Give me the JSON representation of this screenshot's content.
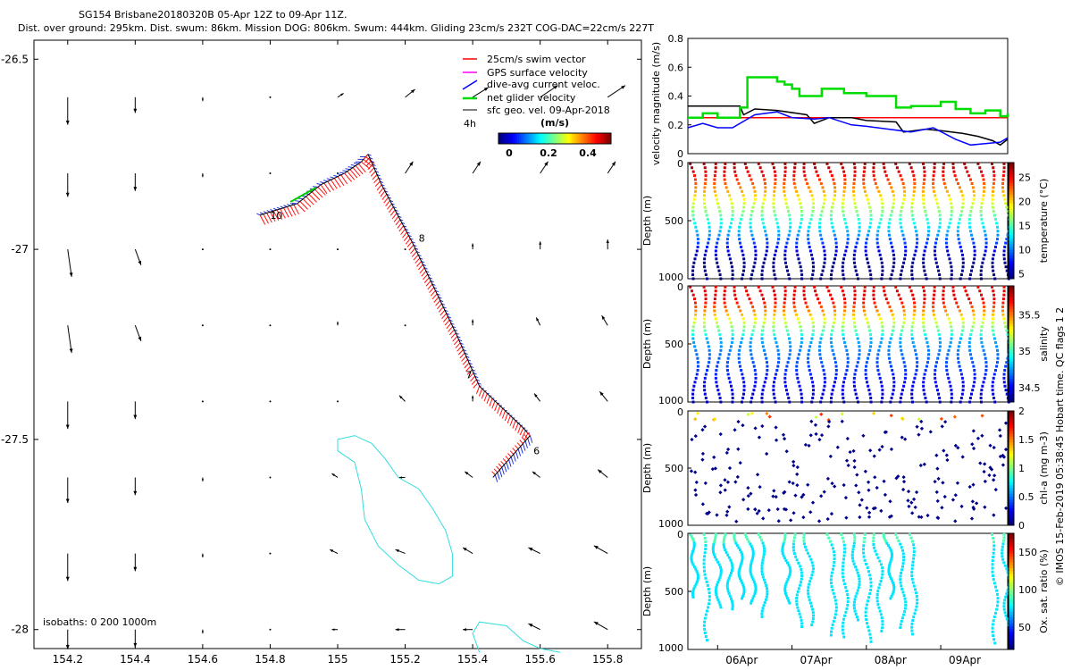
{
  "header": {
    "line1": "SG154 Brisbane20180320B 05-Apr 12Z to 09-Apr 11Z.",
    "line2": "Dist. over ground: 295km. Dist. swum: 86km. Mission DOG: 806km. Swum: 444km. Gliding 23cm/s 232T COG-DAC=22cm/s 227T"
  },
  "chart_data": [
    {
      "type": "scatter",
      "name": "map",
      "title": "glider track map",
      "xlim": [
        154.1,
        155.9
      ],
      "ylim": [
        -28.05,
        -26.45
      ],
      "x_ticks": [
        154.2,
        154.4,
        154.6,
        154.8,
        155,
        155.2,
        155.4,
        155.6,
        155.8
      ],
      "x_tick_labels": [
        "154.2",
        "154.4",
        "154.6",
        "154.8",
        "155",
        "155.2",
        "155.4",
        "155.6",
        "155.8"
      ],
      "y_ticks": [
        -26.5,
        -27,
        -27.5,
        -28
      ],
      "y_tick_labels": [
        "-26.5",
        "-27",
        "-27.5",
        "-28"
      ],
      "legend": {
        "placement": "top-right",
        "entries": [
          {
            "label": "25cm/s swim vector",
            "color": "#ff0000"
          },
          {
            "label": "GPS surface velocity",
            "color": "#ff00ff"
          },
          {
            "label": "dive-avg current veloc.",
            "color": "#0000ff"
          },
          {
            "label": "net glider velocity",
            "color": "#00cc00"
          },
          {
            "label": "sfc geo. vel. 09-Apr-2018",
            "color": "#000000"
          }
        ],
        "note": "4h",
        "colorbar_title": "(m/s)",
        "colorbar_ticks": [
          "0",
          "0.2",
          "0.4"
        ]
      },
      "isobaths_label": "isobaths: 0   200  1000m",
      "track": [
        {
          "lon": 154.77,
          "lat": -26.91
        },
        {
          "lon": 154.88,
          "lat": -26.88
        },
        {
          "lon": 154.95,
          "lat": -26.83
        },
        {
          "lon": 155.02,
          "lat": -26.8
        },
        {
          "lon": 155.07,
          "lat": -26.77
        },
        {
          "lon": 155.09,
          "lat": -26.75
        },
        {
          "lon": 155.13,
          "lat": -26.83
        },
        {
          "lon": 155.22,
          "lat": -26.98
        },
        {
          "lon": 155.35,
          "lat": -27.22
        },
        {
          "lon": 155.42,
          "lat": -27.36
        },
        {
          "lon": 155.55,
          "lat": -27.47
        },
        {
          "lon": 155.57,
          "lat": -27.49
        },
        {
          "lon": 155.5,
          "lat": -27.56
        },
        {
          "lon": 155.46,
          "lat": -27.6
        }
      ],
      "day_labels": [
        {
          "text": "10",
          "lon": 154.8,
          "lat": -26.91
        },
        {
          "text": "8",
          "lon": 155.24,
          "lat": -26.97
        },
        {
          "text": "7",
          "lon": 155.38,
          "lat": -27.33
        },
        {
          "text": "6",
          "lon": 155.58,
          "lat": -27.53
        }
      ],
      "isobath_1000m": [
        {
          "lon": 155.0,
          "lat": -27.5
        },
        {
          "lon": 155.05,
          "lat": -27.49
        },
        {
          "lon": 155.1,
          "lat": -27.51
        },
        {
          "lon": 155.14,
          "lat": -27.55
        },
        {
          "lon": 155.18,
          "lat": -27.6
        },
        {
          "lon": 155.24,
          "lat": -27.63
        },
        {
          "lon": 155.28,
          "lat": -27.68
        },
        {
          "lon": 155.32,
          "lat": -27.74
        },
        {
          "lon": 155.34,
          "lat": -27.8
        },
        {
          "lon": 155.34,
          "lat": -27.86
        },
        {
          "lon": 155.3,
          "lat": -27.88
        },
        {
          "lon": 155.24,
          "lat": -27.87
        },
        {
          "lon": 155.18,
          "lat": -27.83
        },
        {
          "lon": 155.12,
          "lat": -27.78
        },
        {
          "lon": 155.08,
          "lat": -27.71
        },
        {
          "lon": 155.07,
          "lat": -27.63
        },
        {
          "lon": 155.05,
          "lat": -27.56
        },
        {
          "lon": 155.0,
          "lat": -27.53
        },
        {
          "lon": 155.0,
          "lat": -27.5
        }
      ],
      "isobath_1000m_south": [
        {
          "lon": 155.42,
          "lat": -28.06
        },
        {
          "lon": 155.4,
          "lat": -28.01
        },
        {
          "lon": 155.42,
          "lat": -27.98
        },
        {
          "lon": 155.5,
          "lat": -27.99
        },
        {
          "lon": 155.55,
          "lat": -28.03
        },
        {
          "lon": 155.6,
          "lat": -28.05
        },
        {
          "lon": 155.66,
          "lat": -28.06
        }
      ],
      "current_grid": {
        "lons": [
          154.2,
          154.4,
          154.6,
          154.8,
          155.0,
          155.2,
          155.4,
          155.6,
          155.8
        ],
        "lats": [
          -26.6,
          -26.8,
          -27.0,
          -27.2,
          -27.4,
          -27.6,
          -27.8,
          -28.0
        ],
        "u": [
          [
            0.0,
            0.0,
            0.0,
            0.0,
            0.03,
            0.05,
            0.08,
            0.09,
            0.09
          ],
          [
            0.0,
            0.0,
            0.0,
            0.0,
            0.0,
            0.04,
            0.04,
            0.04,
            0.04
          ],
          [
            0.02,
            0.03,
            0.0,
            0.0,
            0.0,
            0.0,
            0.0,
            0.0,
            0.0
          ],
          [
            0.02,
            0.03,
            0.0,
            0.0,
            0.0,
            0.0,
            0.0,
            -0.02,
            -0.03
          ],
          [
            0.0,
            0.0,
            0.0,
            0.0,
            0.0,
            -0.03,
            0.0,
            -0.03,
            -0.04
          ],
          [
            0.0,
            0.0,
            0.0,
            0.0,
            -0.03,
            -0.03,
            -0.04,
            -0.04,
            -0.05
          ],
          [
            0.0,
            0.0,
            0.0,
            0.0,
            -0.04,
            -0.05,
            -0.05,
            -0.06,
            -0.07
          ],
          [
            0.0,
            0.0,
            0.0,
            0.0,
            -0.03,
            -0.05,
            -0.05,
            -0.06,
            -0.07
          ]
        ],
        "v": [
          [
            -0.14,
            -0.08,
            -0.02,
            0.0,
            0.02,
            0.04,
            0.05,
            0.06,
            0.06
          ],
          [
            -0.12,
            -0.09,
            -0.02,
            0.0,
            0.0,
            0.06,
            0.06,
            0.06,
            0.06
          ],
          [
            -0.14,
            -0.08,
            0.0,
            0.0,
            0.0,
            0.0,
            0.03,
            0.04,
            0.05
          ],
          [
            -0.14,
            -0.08,
            0.0,
            0.0,
            0.02,
            0.0,
            0.03,
            0.04,
            0.05
          ],
          [
            -0.14,
            -0.09,
            0.0,
            0.0,
            0.0,
            0.03,
            0.03,
            0.04,
            0.05
          ],
          [
            -0.13,
            -0.09,
            -0.02,
            0.0,
            0.02,
            0.0,
            0.03,
            0.03,
            0.04
          ],
          [
            -0.14,
            -0.09,
            -0.02,
            0.0,
            0.02,
            0.02,
            0.03,
            0.03,
            0.04
          ],
          [
            -0.1,
            -0.09,
            -0.02,
            0.0,
            0.0,
            0.0,
            0.0,
            0.03,
            0.04
          ]
        ]
      }
    },
    {
      "type": "line",
      "name": "velocity",
      "ylabel": "velocity magnitude (m/s)",
      "xlim": [
        5.6,
        9.9
      ],
      "ylim": [
        0,
        0.8
      ],
      "y_ticks": [
        0,
        0.2,
        0.4,
        0.6,
        0.8
      ],
      "y_tick_labels": [
        "0",
        "0.2",
        "0.4",
        "0.6",
        "0.8"
      ],
      "series": [
        {
          "name": "swim speed",
          "color": "#ff0000",
          "x": [
            5.6,
            9.9
          ],
          "y": [
            0.25,
            0.25
          ]
        },
        {
          "name": "sfc geo. vel.",
          "color": "#000000",
          "x": [
            5.6,
            6.0,
            6.3,
            6.35,
            6.5,
            6.8,
            7.2,
            7.3,
            7.5,
            7.8,
            8.0,
            8.4,
            8.5,
            8.8,
            9.0,
            9.3,
            9.5,
            9.7,
            9.8,
            9.9
          ],
          "y": [
            0.33,
            0.33,
            0.33,
            0.27,
            0.31,
            0.3,
            0.27,
            0.21,
            0.25,
            0.25,
            0.23,
            0.22,
            0.15,
            0.17,
            0.16,
            0.14,
            0.12,
            0.09,
            0.06,
            0.1
          ]
        },
        {
          "name": "dive-avg current",
          "color": "#0000ff",
          "x": [
            5.6,
            5.8,
            6.0,
            6.2,
            6.5,
            6.8,
            7.0,
            7.3,
            7.5,
            7.8,
            8.0,
            8.3,
            8.6,
            8.9,
            9.2,
            9.4,
            9.6,
            9.8,
            9.9
          ],
          "y": [
            0.18,
            0.21,
            0.18,
            0.18,
            0.27,
            0.29,
            0.25,
            0.24,
            0.25,
            0.2,
            0.19,
            0.17,
            0.15,
            0.18,
            0.1,
            0.06,
            0.07,
            0.08,
            0.11
          ]
        },
        {
          "name": "net glider velocity",
          "color": "#00dd00",
          "x": [
            5.6,
            5.8,
            6.0,
            6.3,
            6.4,
            6.6,
            6.8,
            6.9,
            7.0,
            7.1,
            7.4,
            7.5,
            7.7,
            7.9,
            8.0,
            8.3,
            8.4,
            8.6,
            8.8,
            9.0,
            9.2,
            9.4,
            9.6,
            9.8,
            9.9
          ],
          "y": [
            0.25,
            0.28,
            0.25,
            0.32,
            0.53,
            0.53,
            0.5,
            0.48,
            0.45,
            0.4,
            0.45,
            0.45,
            0.42,
            0.42,
            0.4,
            0.4,
            0.32,
            0.33,
            0.33,
            0.36,
            0.31,
            0.28,
            0.3,
            0.26,
            0.28
          ]
        }
      ]
    },
    {
      "type": "scatter",
      "name": "temperature profile",
      "ylabel": "Depth (m)",
      "ylim": [
        0,
        1000
      ],
      "y_ticks": [
        0,
        500,
        1000
      ],
      "y_tick_labels": [
        "0",
        "500",
        "1000"
      ],
      "colorbar_label": "temperature (°C)",
      "colorbar_ticks": [
        "5",
        "10",
        "15",
        "20",
        "25"
      ],
      "colorbar_range": [
        4,
        28
      ]
    },
    {
      "type": "scatter",
      "name": "salinity profile",
      "ylabel": "Depth (m)",
      "ylim": [
        0,
        1000
      ],
      "y_ticks": [
        0,
        500,
        1000
      ],
      "y_tick_labels": [
        "0",
        "500",
        "1000"
      ],
      "colorbar_label": "salinity",
      "colorbar_ticks": [
        "34.5",
        "35",
        "35.5"
      ],
      "colorbar_range": [
        34.3,
        35.9
      ]
    },
    {
      "type": "scatter",
      "name": "chlorophyll profile",
      "ylabel": "Depth (m)",
      "ylim": [
        0,
        1000
      ],
      "y_ticks": [
        0,
        500,
        1000
      ],
      "y_tick_labels": [
        "0",
        "500",
        "1000"
      ],
      "colorbar_label": "chl-a (mg m-3)",
      "colorbar_ticks": [
        "0",
        "0.5",
        "1",
        "1.5",
        "2"
      ],
      "colorbar_range": [
        0,
        2
      ]
    },
    {
      "type": "scatter",
      "name": "oxygen profile",
      "ylabel": "Depth (m)",
      "ylim": [
        0,
        1000
      ],
      "y_ticks": [
        0,
        500,
        1000
      ],
      "y_tick_labels": [
        "0",
        "500",
        "1000"
      ],
      "colorbar_label": "Ox. sat. ratio (%)",
      "colorbar_ticks": [
        "50",
        "100",
        "150"
      ],
      "colorbar_range": [
        20,
        175
      ],
      "x_ticks": [
        6,
        7,
        8,
        9
      ],
      "x_tick_labels": [
        "06Apr",
        "07Apr",
        "08Apr",
        "09Apr"
      ]
    }
  ],
  "footer": {
    "vertical_note": "© IMOS 15-Feb-2019 05:38:45 Hobart time. QC flags 1  2"
  }
}
